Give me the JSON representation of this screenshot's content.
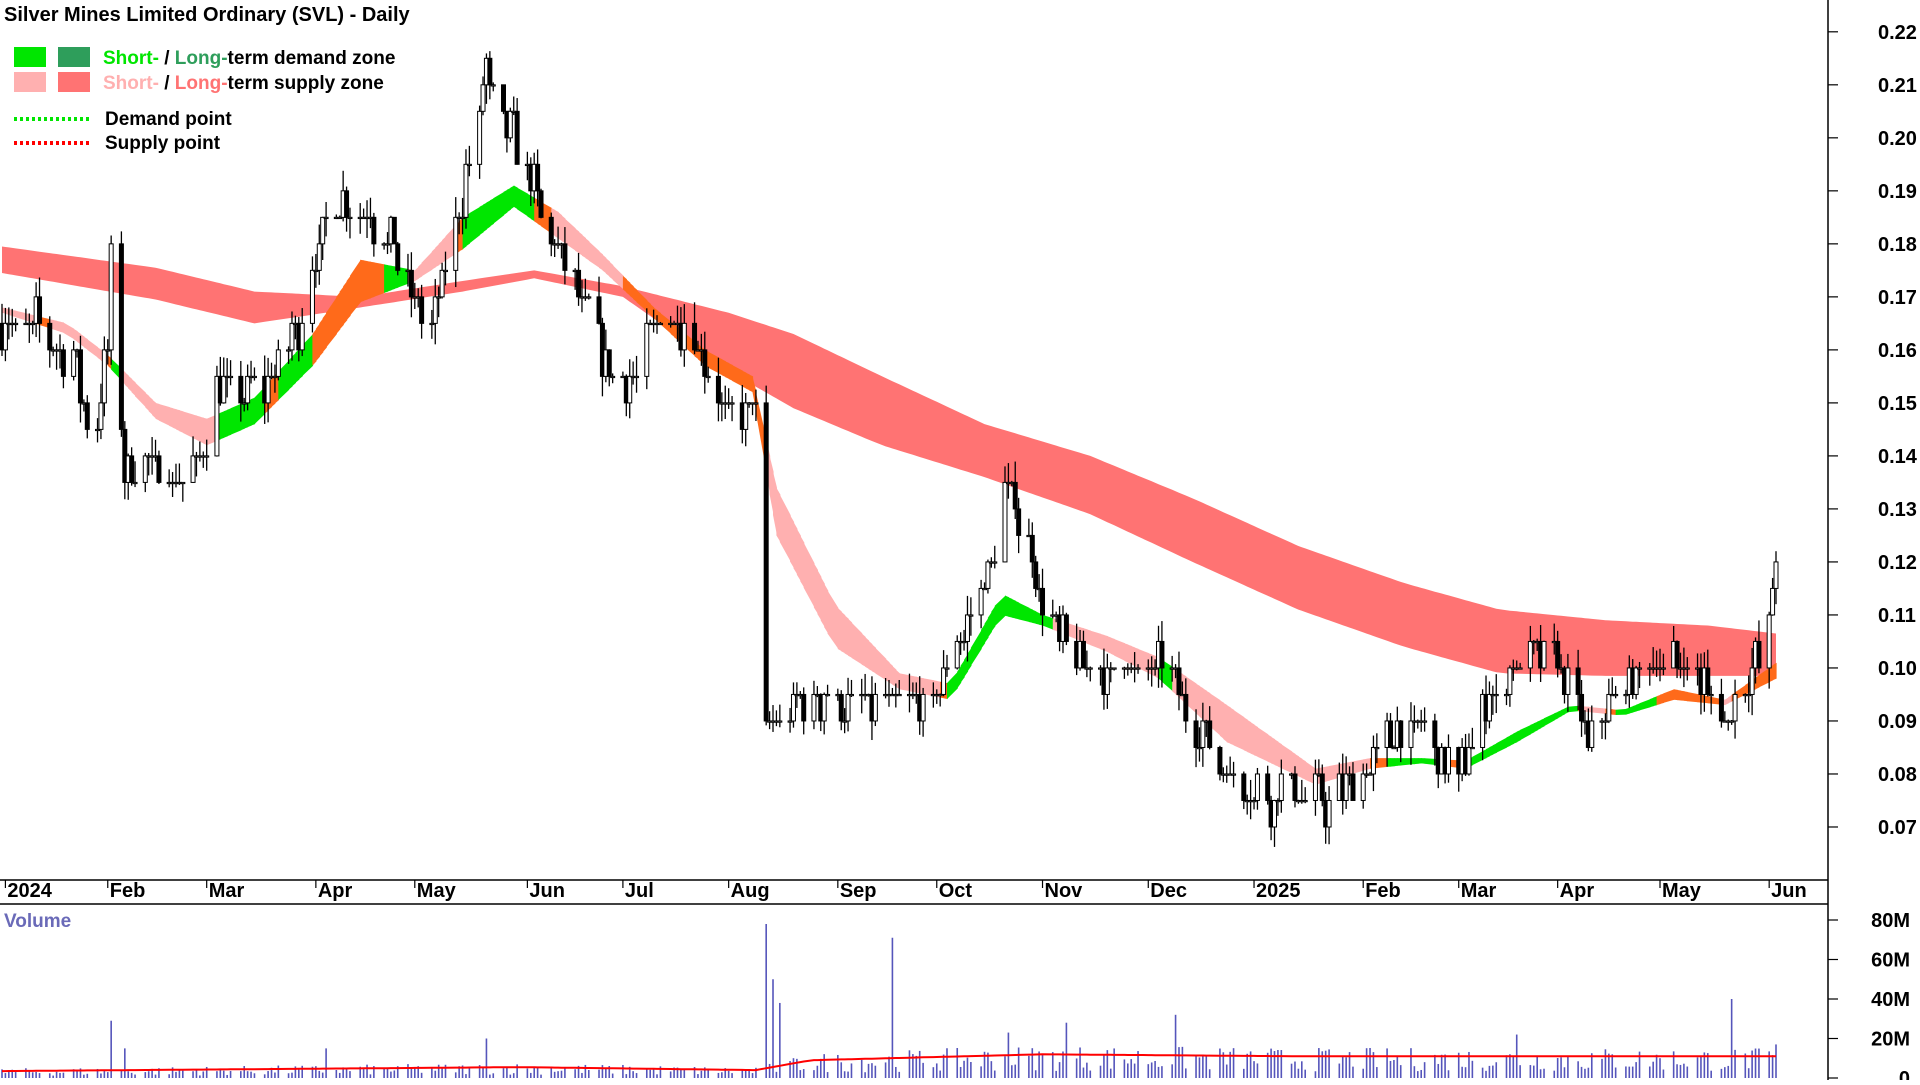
{
  "title": "Silver Mines Limited Ordinary (SVL) - Daily",
  "legend": [
    {
      "prefix": "Short-",
      "sep": " / ",
      "mid": "Long-",
      "rest": "term demand zone",
      "shortColor": "#00e600",
      "longColor": "#2e9e5b",
      "kind": "demand-zone"
    },
    {
      "prefix": "Short-",
      "sep": " / ",
      "mid": "Long-",
      "rest": "term supply zone",
      "shortColor": "#ffb0b0",
      "longColor": "#ff7373",
      "kind": "supply-zone"
    },
    {
      "label": "Demand point",
      "color": "#00e600",
      "kind": "demand-point"
    },
    {
      "label": "Supply point",
      "color": "#ff0000",
      "kind": "supply-point"
    }
  ],
  "colors": {
    "short_demand": "#00e600",
    "long_demand": "#2e9e5b",
    "short_supply": "#ffb0b0",
    "long_supply": "#ff7373",
    "overlap": "#ff6a1a",
    "volume_bar": "#5555bb",
    "volume_avg": "#ff0000",
    "volume_label": "#6a6ab8"
  },
  "chart_data": {
    "type": "line",
    "price_axis": {
      "min": 0.06,
      "max": 0.226,
      "ticks": [
        0.07,
        0.08,
        0.09,
        0.1,
        0.11,
        0.12,
        0.13,
        0.14,
        0.15,
        0.16,
        0.17,
        0.18,
        0.19,
        0.2,
        0.21,
        0.22
      ],
      "tick_labels": [
        "0.07",
        "0.08",
        "0.09",
        "0.10",
        "0.11",
        "0.12",
        "0.13",
        "0.14",
        "0.15",
        "0.16",
        "0.17",
        "0.18",
        "0.19",
        "0.20",
        "0.21",
        "0.22"
      ]
    },
    "x_axis": {
      "start": "2024-01-01",
      "end": "2025-06-04",
      "ticks": [
        {
          "label": "2024",
          "date": "2024-01-02"
        },
        {
          "label": "Feb",
          "date": "2024-02-01"
        },
        {
          "label": "Mar",
          "date": "2024-03-01"
        },
        {
          "label": "Apr",
          "date": "2024-04-02"
        },
        {
          "label": "May",
          "date": "2024-05-01"
        },
        {
          "label": "Jun",
          "date": "2024-06-03"
        },
        {
          "label": "Jul",
          "date": "2024-07-01"
        },
        {
          "label": "Aug",
          "date": "2024-08-01"
        },
        {
          "label": "Sep",
          "date": "2024-09-02"
        },
        {
          "label": "Oct",
          "date": "2024-10-01"
        },
        {
          "label": "Nov",
          "date": "2024-11-01"
        },
        {
          "label": "Dec",
          "date": "2024-12-02"
        },
        {
          "label": "2025",
          "date": "2025-01-02"
        },
        {
          "label": "Feb",
          "date": "2025-02-03"
        },
        {
          "label": "Mar",
          "date": "2025-03-03"
        },
        {
          "label": "Apr",
          "date": "2025-04-01"
        },
        {
          "label": "May",
          "date": "2025-05-01"
        },
        {
          "label": "Jun",
          "date": "2025-06-02"
        }
      ]
    },
    "price_path": [
      [
        "2024-01-02",
        0.165
      ],
      [
        "2024-01-12",
        0.165
      ],
      [
        "2024-01-22",
        0.158
      ],
      [
        "2024-01-28",
        0.143
      ],
      [
        "2024-02-01",
        0.16
      ],
      [
        "2024-02-02",
        0.175
      ],
      [
        "2024-02-06",
        0.138
      ],
      [
        "2024-02-20",
        0.136
      ],
      [
        "2024-02-28",
        0.138
      ],
      [
        "2024-03-04",
        0.152
      ],
      [
        "2024-03-18",
        0.153
      ],
      [
        "2024-03-28",
        0.165
      ],
      [
        "2024-04-08",
        0.19
      ],
      [
        "2024-04-18",
        0.185
      ],
      [
        "2024-04-26",
        0.178
      ],
      [
        "2024-05-06",
        0.163
      ],
      [
        "2024-05-14",
        0.185
      ],
      [
        "2024-05-22",
        0.212
      ],
      [
        "2024-05-30",
        0.2
      ],
      [
        "2024-06-05",
        0.19
      ],
      [
        "2024-06-12",
        0.178
      ],
      [
        "2024-06-20",
        0.168
      ],
      [
        "2024-06-28",
        0.155
      ],
      [
        "2024-07-05",
        0.155
      ],
      [
        "2024-07-12",
        0.168
      ],
      [
        "2024-07-22",
        0.163
      ],
      [
        "2024-07-30",
        0.15
      ],
      [
        "2024-08-05",
        0.148
      ],
      [
        "2024-08-09",
        0.15
      ],
      [
        "2024-08-12",
        0.088
      ],
      [
        "2024-08-20",
        0.092
      ],
      [
        "2024-08-30",
        0.095
      ],
      [
        "2024-09-10",
        0.093
      ],
      [
        "2024-09-20",
        0.092
      ],
      [
        "2024-09-30",
        0.094
      ],
      [
        "2024-10-08",
        0.105
      ],
      [
        "2024-10-16",
        0.118
      ],
      [
        "2024-10-22",
        0.135
      ],
      [
        "2024-10-28",
        0.122
      ],
      [
        "2024-11-04",
        0.107
      ],
      [
        "2024-11-15",
        0.1
      ],
      [
        "2024-11-28",
        0.1
      ],
      [
        "2024-12-06",
        0.1
      ],
      [
        "2024-12-14",
        0.092
      ],
      [
        "2024-12-24",
        0.081
      ],
      [
        "2025-01-06",
        0.075
      ],
      [
        "2025-01-14",
        0.078
      ],
      [
        "2025-01-24",
        0.074
      ],
      [
        "2025-02-03",
        0.08
      ],
      [
        "2025-02-12",
        0.088
      ],
      [
        "2025-02-20",
        0.089
      ],
      [
        "2025-03-03",
        0.08
      ],
      [
        "2025-03-12",
        0.094
      ],
      [
        "2025-03-20",
        0.1
      ],
      [
        "2025-03-28",
        0.103
      ],
      [
        "2025-04-04",
        0.099
      ],
      [
        "2025-04-10",
        0.085
      ],
      [
        "2025-04-16",
        0.093
      ],
      [
        "2025-04-28",
        0.1
      ],
      [
        "2025-05-06",
        0.102
      ],
      [
        "2025-05-14",
        0.097
      ],
      [
        "2025-05-20",
        0.089
      ],
      [
        "2025-05-26",
        0.097
      ],
      [
        "2025-05-30",
        0.102
      ],
      [
        "2025-06-02",
        0.108
      ],
      [
        "2025-06-04",
        0.124
      ]
    ],
    "long_zone": [
      [
        "2024-01-01",
        0.1795,
        0.1745
      ],
      [
        "2024-02-15",
        0.1755,
        0.1695
      ],
      [
        "2024-03-15",
        0.171,
        0.165
      ],
      [
        "2024-04-15",
        0.17,
        0.168
      ],
      [
        "2024-05-15",
        0.173,
        0.171
      ],
      [
        "2024-06-05",
        0.175,
        0.1735
      ],
      [
        "2024-07-01",
        0.172,
        0.17
      ],
      [
        "2024-08-01",
        0.167,
        0.156
      ],
      [
        "2024-08-20",
        0.163,
        0.149
      ],
      [
        "2024-09-15",
        0.155,
        0.142
      ],
      [
        "2024-10-15",
        0.146,
        0.136
      ],
      [
        "2024-11-15",
        0.14,
        0.129
      ],
      [
        "2024-12-15",
        0.132,
        0.12
      ],
      [
        "2025-01-15",
        0.123,
        0.111
      ],
      [
        "2025-02-15",
        0.116,
        0.104
      ],
      [
        "2025-03-15",
        0.111,
        0.099
      ],
      [
        "2025-04-15",
        0.109,
        0.0985
      ],
      [
        "2025-05-15",
        0.108,
        0.0985
      ],
      [
        "2025-06-04",
        0.1065,
        0.0985
      ]
    ],
    "short_zone": [
      [
        "2024-01-01",
        0.168,
        0.167
      ],
      [
        "2024-01-20",
        0.165,
        0.163
      ],
      [
        "2024-02-01",
        0.159,
        0.157
      ],
      [
        "2024-02-15",
        0.15,
        0.147
      ],
      [
        "2024-03-01",
        0.147,
        0.142
      ],
      [
        "2024-03-15",
        0.151,
        0.146
      ],
      [
        "2024-04-01",
        0.163,
        0.157
      ],
      [
        "2024-04-15",
        0.177,
        0.169
      ],
      [
        "2024-05-01",
        0.175,
        0.173
      ],
      [
        "2024-05-15",
        0.185,
        0.179
      ],
      [
        "2024-05-30",
        0.191,
        0.187
      ],
      [
        "2024-06-12",
        0.186,
        0.181
      ],
      [
        "2024-06-25",
        0.178,
        0.175
      ],
      [
        "2024-07-10",
        0.168,
        0.166
      ],
      [
        "2024-07-25",
        0.16,
        0.157
      ],
      [
        "2024-08-08",
        0.155,
        0.152
      ],
      [
        "2024-08-15",
        0.134,
        0.125
      ],
      [
        "2024-09-01",
        0.112,
        0.104
      ],
      [
        "2024-09-20",
        0.099,
        0.096
      ],
      [
        "2024-10-05",
        0.097,
        0.094
      ],
      [
        "2024-10-20",
        0.114,
        0.11
      ],
      [
        "2024-11-01",
        0.11,
        0.108
      ],
      [
        "2024-11-20",
        0.106,
        0.103
      ],
      [
        "2024-12-05",
        0.102,
        0.098
      ],
      [
        "2024-12-25",
        0.093,
        0.086
      ],
      [
        "2025-01-20",
        0.081,
        0.078
      ],
      [
        "2025-02-05",
        0.083,
        0.081
      ],
      [
        "2025-02-20",
        0.083,
        0.082
      ],
      [
        "2025-03-05",
        0.0825,
        0.081
      ],
      [
        "2025-03-20",
        0.088,
        0.086
      ],
      [
        "2025-04-05",
        0.093,
        0.092
      ],
      [
        "2025-04-20",
        0.092,
        0.091
      ],
      [
        "2025-05-05",
        0.096,
        0.094
      ],
      [
        "2025-05-20",
        0.094,
        0.093
      ],
      [
        "2025-06-04",
        0.101,
        0.098
      ]
    ],
    "volume_axis": {
      "min": 0,
      "max": 80000000,
      "ticks": [
        0,
        20000000,
        40000000,
        60000000,
        80000000
      ],
      "tick_labels": [
        "0",
        "20M",
        "40M",
        "60M",
        "80M"
      ],
      "label": "Volume"
    },
    "volume_spikes": [
      [
        "2024-02-02",
        29000000
      ],
      [
        "2024-02-06",
        15000000
      ],
      [
        "2024-04-05",
        15000000
      ],
      [
        "2024-05-22",
        20000000
      ],
      [
        "2024-08-12",
        78000000
      ],
      [
        "2024-08-14",
        50000000
      ],
      [
        "2024-08-16",
        38000000
      ],
      [
        "2024-09-18",
        71000000
      ],
      [
        "2024-10-22",
        23000000
      ],
      [
        "2024-11-08",
        28000000
      ],
      [
        "2024-12-10",
        32000000
      ],
      [
        "2025-03-20",
        22000000
      ],
      [
        "2025-05-22",
        40000000
      ],
      [
        "2025-06-04",
        17000000
      ]
    ],
    "volume_base": 6000000,
    "volume_avg": [
      [
        "2024-01-01",
        3500000
      ],
      [
        "2024-06-01",
        5500000
      ],
      [
        "2024-08-09",
        4000000
      ],
      [
        "2024-08-25",
        9000000
      ],
      [
        "2024-11-01",
        12000000
      ],
      [
        "2025-01-15",
        11000000
      ],
      [
        "2025-06-04",
        11000000
      ]
    ]
  }
}
